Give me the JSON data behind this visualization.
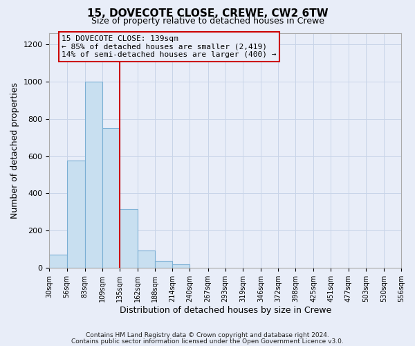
{
  "title": "15, DOVECOTE CLOSE, CREWE, CW2 6TW",
  "subtitle": "Size of property relative to detached houses in Crewe",
  "xlabel": "Distribution of detached houses by size in Crewe",
  "ylabel": "Number of detached properties",
  "bar_edges": [
    30,
    56,
    83,
    109,
    135,
    162,
    188,
    214,
    240,
    267,
    293,
    319,
    346,
    372,
    398,
    425,
    451,
    477,
    503,
    530,
    556
  ],
  "bar_heights": [
    70,
    575,
    1000,
    750,
    315,
    95,
    40,
    20,
    0,
    0,
    0,
    0,
    0,
    0,
    0,
    0,
    0,
    0,
    0,
    0
  ],
  "bar_color": "#c8dff0",
  "bar_edge_color": "#7bafd4",
  "property_line_x": 135,
  "property_line_color": "#cc0000",
  "annotation_title": "15 DOVECOTE CLOSE: 139sqm",
  "annotation_line1": "← 85% of detached houses are smaller (2,419)",
  "annotation_line2": "14% of semi-detached houses are larger (400) →",
  "annotation_box_edge_color": "#cc0000",
  "ylim": [
    0,
    1260
  ],
  "yticks": [
    0,
    200,
    400,
    600,
    800,
    1000,
    1200
  ],
  "tick_labels": [
    "30sqm",
    "56sqm",
    "83sqm",
    "109sqm",
    "135sqm",
    "162sqm",
    "188sqm",
    "214sqm",
    "240sqm",
    "267sqm",
    "293sqm",
    "319sqm",
    "346sqm",
    "372sqm",
    "398sqm",
    "425sqm",
    "451sqm",
    "477sqm",
    "503sqm",
    "530sqm",
    "556sqm"
  ],
  "grid_color": "#c8d4e8",
  "bg_color": "#e8edf8",
  "footnote1": "Contains HM Land Registry data © Crown copyright and database right 2024.",
  "footnote2": "Contains public sector information licensed under the Open Government Licence v3.0."
}
